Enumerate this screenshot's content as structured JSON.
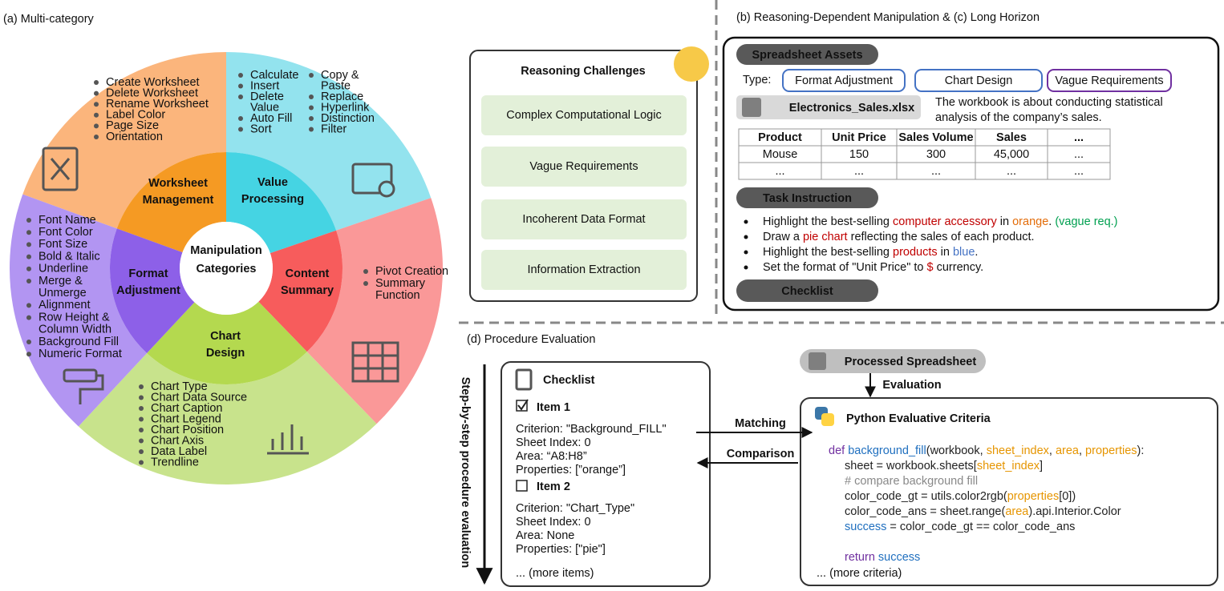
{
  "panel_a": {
    "title": "(a) Multi-category",
    "center": [
      "Manipulation",
      "Categories"
    ],
    "categories": [
      {
        "name": [
          "Worksheet",
          "Management"
        ],
        "inner_color": "#f59a23",
        "outer_color": "#fbb57c",
        "items": [
          [
            [
              "Create Worksheet"
            ],
            [
              "Delete Worksheet"
            ],
            [
              "Rename Worksheet"
            ],
            [
              "Label Color"
            ],
            [
              "Page Size"
            ],
            [
              "Orientation"
            ]
          ]
        ]
      },
      {
        "name": [
          "Value",
          "Processing"
        ],
        "inner_color": "#45d4e3",
        "outer_color": "#93e3ee",
        "items": [
          [
            [
              "Calculate"
            ],
            [
              "Insert"
            ],
            [
              "Delete",
              "Value"
            ],
            [
              "Auto Fill"
            ],
            [
              "Sort"
            ]
          ],
          [
            [
              "Copy &",
              "Paste"
            ],
            [
              "Replace"
            ],
            [
              "Hyperlink"
            ],
            [
              "Distinction"
            ],
            [
              "Filter"
            ]
          ]
        ]
      },
      {
        "name": [
          "Content",
          "Summary"
        ],
        "inner_color": "#f75c5c",
        "outer_color": "#fa9898",
        "items": [
          [
            [
              "Pivot Creation"
            ],
            [
              "Summary",
              "Function"
            ]
          ]
        ]
      },
      {
        "name": [
          "Chart",
          "Design"
        ],
        "inner_color": "#b4d94f",
        "outer_color": "#c8e38c",
        "items": [
          [
            [
              "Chart Type"
            ],
            [
              "Chart Data Source"
            ],
            [
              "Chart Caption"
            ],
            [
              "Chart Legend"
            ],
            [
              "Chart Position"
            ],
            [
              "Chart Axis"
            ],
            [
              "Data Label"
            ],
            [
              "Trendline"
            ]
          ]
        ]
      },
      {
        "name": [
          "Format",
          "Adjustment"
        ],
        "inner_color": "#8d60e8",
        "outer_color": "#b295f2",
        "items": [
          [
            [
              "Font Name"
            ],
            [
              "Font Color"
            ],
            [
              "Font Size"
            ],
            [
              "Bold & Italic"
            ],
            [
              "Underline"
            ],
            [
              "Merge &",
              "Unmerge"
            ],
            [
              "Alignment"
            ],
            [
              "Row Height &",
              "Column Width"
            ],
            [
              "Background Fill"
            ],
            [
              "Numeric Format"
            ]
          ]
        ]
      }
    ]
  },
  "reasoning": {
    "title": "Reasoning Challenges",
    "challenges": [
      "Complex Computational Logic",
      "Vague Requirements",
      "Incoherent Data Format",
      "Information Extraction"
    ]
  },
  "panel_bc": {
    "title": "(b) Reasoning-Dependent Manipulation & (c) Long Horizon",
    "assets_label": "Spreadsheet Assets",
    "type_label": "Type:",
    "types": [
      {
        "label": "Format Adjustment",
        "color": "#4472c4"
      },
      {
        "label": "Chart Design",
        "color": "#4472c4"
      },
      {
        "label": "Vague Requirements",
        "color": "#7030a0"
      }
    ],
    "file": "Electronics_Sales.xlsx",
    "description": [
      "The workbook is about conducting statistical",
      "analysis of the company’s sales."
    ],
    "table": {
      "header": [
        "Product",
        "Unit Price",
        "Sales Volume",
        "Sales",
        "..."
      ],
      "rows": [
        [
          "Mouse",
          "150",
          "300",
          "45,000",
          "..."
        ],
        [
          "...",
          "...",
          "...",
          "...",
          "..."
        ]
      ]
    },
    "task_label": "Task Instruction",
    "instructions": [
      [
        {
          "text": "Highlight the best-selling ",
          "color": "#111111"
        },
        {
          "text": "computer accessory",
          "color": "#c00000"
        },
        {
          "text": " in ",
          "color": "#111111"
        },
        {
          "text": "orange",
          "color": "#e36c09"
        },
        {
          "text": ". ",
          "color": "#111111"
        },
        {
          "text": "(vague req.)",
          "color": "#00a050"
        }
      ],
      [
        {
          "text": "Draw a ",
          "color": "#111111"
        },
        {
          "text": "pie chart",
          "color": "#c00000"
        },
        {
          "text": " reflecting the sales of each product.",
          "color": "#111111"
        }
      ],
      [
        {
          "text": "Highlight the best-selling ",
          "color": "#111111"
        },
        {
          "text": "products",
          "color": "#c00000"
        },
        {
          "text": " in ",
          "color": "#111111"
        },
        {
          "text": "blue",
          "color": "#4472c4"
        },
        {
          "text": ".",
          "color": "#111111"
        }
      ],
      [
        {
          "text": "Set the format of \"Unit Price\" to ",
          "color": "#111111"
        },
        {
          "text": "$",
          "color": "#c00000"
        },
        {
          "text": " currency.",
          "color": "#111111"
        }
      ]
    ],
    "checklist_label": "Checklist"
  },
  "panel_d": {
    "title": "(d) Procedure Evaluation",
    "axis_label": "Step-by-step procedure evaluation",
    "checklist": {
      "title": "Checklist",
      "items": [
        {
          "name": "Item 1",
          "checked": true,
          "lines": [
            "Criterion: \"Background_FILL\"",
            "Sheet Index: 0",
            "Area: “A8:H8”",
            "Properties: [”orange”]"
          ]
        },
        {
          "name": "Item 2",
          "checked": false,
          "lines": [
            "Criterion: \"Chart_Type\"",
            "Sheet Index: 0",
            "Area: None",
            "Properties: [\"pie\"]"
          ]
        }
      ],
      "more": "... (more items)"
    },
    "matching": "Matching",
    "comparison": "Comparison",
    "processed": "Processed Spreadsheet",
    "evaluation": "Evaluation",
    "criteria": {
      "title": "Python Evaluative Criteria",
      "more": "... (more criteria)",
      "code": [
        {
          "indent": 0,
          "segments": [
            {
              "text": "def ",
              "color": "#7030a0"
            },
            {
              "text": "background_fill",
              "color": "#1f6fbf"
            },
            {
              "text": "(workbook, ",
              "color": "#222222"
            },
            {
              "text": "sheet_index",
              "color": "#e69500"
            },
            {
              "text": ", ",
              "color": "#222222"
            },
            {
              "text": "area",
              "color": "#e69500"
            },
            {
              "text": ", ",
              "color": "#222222"
            },
            {
              "text": "properties",
              "color": "#e69500"
            },
            {
              "text": "):",
              "color": "#222222"
            }
          ]
        },
        {
          "indent": 1,
          "segments": [
            {
              "text": "sheet = workbook.sheets[",
              "color": "#222222"
            },
            {
              "text": "sheet_index",
              "color": "#e69500"
            },
            {
              "text": "]",
              "color": "#222222"
            }
          ]
        },
        {
          "indent": 1,
          "segments": [
            {
              "text": "# compare background fill",
              "color": "#888888"
            }
          ]
        },
        {
          "indent": 1,
          "segments": [
            {
              "text": "color_code_gt = utils.color2rgb(",
              "color": "#222222"
            },
            {
              "text": "properties",
              "color": "#e69500"
            },
            {
              "text": "[0])",
              "color": "#222222"
            }
          ]
        },
        {
          "indent": 1,
          "segments": [
            {
              "text": "color_code_ans = sheet.range(",
              "color": "#222222"
            },
            {
              "text": "area",
              "color": "#e69500"
            },
            {
              "text": ").api.Interior.Color",
              "color": "#222222"
            }
          ]
        },
        {
          "indent": 1,
          "segments": [
            {
              "text": "success",
              "color": "#1f6fbf"
            },
            {
              "text": " = color_code_gt == color_code_ans",
              "color": "#222222"
            }
          ]
        },
        {
          "indent": 1,
          "segments": []
        },
        {
          "indent": 1,
          "segments": [
            {
              "text": "return ",
              "color": "#7030a0"
            },
            {
              "text": "success",
              "color": "#1f6fbf"
            }
          ]
        }
      ]
    }
  }
}
